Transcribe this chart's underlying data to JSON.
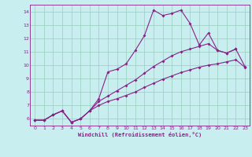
{
  "xlabel": "Windchill (Refroidissement éolien,°C)",
  "bg_color": "#c8eef0",
  "line_color": "#882288",
  "grid_color": "#99ccbb",
  "xlim": [
    -0.5,
    23.5
  ],
  "ylim": [
    5.5,
    14.5
  ],
  "xticks": [
    0,
    1,
    2,
    3,
    4,
    5,
    6,
    7,
    8,
    9,
    10,
    11,
    12,
    13,
    14,
    15,
    16,
    17,
    18,
    19,
    20,
    21,
    22,
    23
  ],
  "yticks": [
    6,
    7,
    8,
    9,
    10,
    11,
    12,
    13,
    14
  ],
  "line1_x": [
    0,
    1,
    2,
    3,
    4,
    5,
    6,
    7,
    8,
    9,
    10,
    11,
    12,
    13,
    14,
    15,
    16,
    17,
    18,
    19,
    20,
    21,
    22
  ],
  "line1_y": [
    5.9,
    5.9,
    6.3,
    6.6,
    5.75,
    6.0,
    6.6,
    7.5,
    9.5,
    9.7,
    10.1,
    11.1,
    12.2,
    14.1,
    13.7,
    13.85,
    14.1,
    13.1,
    11.5,
    12.4,
    11.1,
    10.9,
    11.2
  ],
  "line2_x": [
    0,
    1,
    2,
    3,
    4,
    5,
    6,
    7,
    8,
    9,
    10,
    11,
    12,
    13,
    14,
    15,
    16,
    17,
    18,
    19,
    20,
    21,
    22,
    23
  ],
  "line2_y": [
    5.9,
    5.9,
    6.3,
    6.6,
    5.75,
    6.0,
    6.6,
    7.3,
    7.7,
    8.1,
    8.5,
    8.9,
    9.4,
    9.9,
    10.3,
    10.7,
    11.0,
    11.2,
    11.4,
    11.6,
    11.1,
    10.9,
    11.2,
    9.9
  ],
  "line3_x": [
    0,
    1,
    2,
    3,
    4,
    5,
    6,
    7,
    8,
    9,
    10,
    11,
    12,
    13,
    14,
    15,
    16,
    17,
    18,
    19,
    20,
    21,
    22,
    23
  ],
  "line3_y": [
    5.9,
    5.9,
    6.3,
    6.6,
    5.75,
    6.0,
    6.6,
    7.0,
    7.3,
    7.5,
    7.75,
    8.0,
    8.35,
    8.65,
    8.95,
    9.2,
    9.45,
    9.65,
    9.85,
    10.0,
    10.1,
    10.25,
    10.4,
    9.85
  ]
}
